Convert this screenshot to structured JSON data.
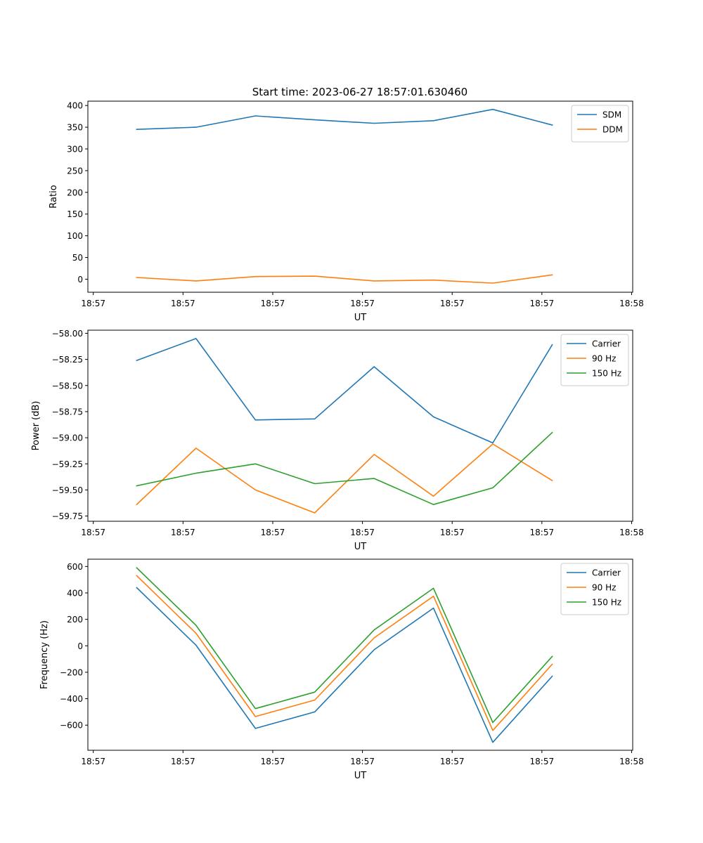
{
  "figure": {
    "title": "Start time: 2023-06-27 18:57:01.630460"
  },
  "chart_data": [
    {
      "type": "line",
      "xlabel": "UT",
      "ylabel": "Ratio",
      "x_tick_labels": [
        "18:57",
        "18:57",
        "18:57",
        "18:57",
        "18:57",
        "18:57",
        "18:58"
      ],
      "x_positions": [
        0.0,
        0.655,
        1.31,
        1.965,
        2.62,
        3.275,
        3.93,
        4.585,
        5.24,
        5.895,
        6.55,
        7.205,
        7.86
      ],
      "x_ticks": [
        0,
        1.655,
        3.31,
        4.965,
        6.62,
        8.275,
        9.93
      ],
      "xlim": [
        -0.1,
        9.95
      ],
      "ylim": [
        -30,
        410
      ],
      "y_ticks": [
        0,
        50,
        100,
        150,
        200,
        250,
        300,
        350,
        400
      ],
      "legend_position": "top-right",
      "grid": false,
      "x": [
        0.8,
        1.895,
        2.99,
        4.085,
        5.18,
        6.275,
        7.37,
        8.465
      ],
      "series": [
        {
          "name": "SDM",
          "color": "#1f77b4",
          "values": [
            345,
            350,
            376,
            367,
            359,
            365,
            391,
            355
          ]
        },
        {
          "name": "DDM",
          "color": "#ff7f0e",
          "values": [
            4,
            -4,
            6,
            7,
            -4,
            -2,
            -9,
            10
          ]
        }
      ]
    },
    {
      "type": "line",
      "xlabel": "UT",
      "ylabel": "Power (dB)",
      "x_tick_labels": [
        "18:57",
        "18:57",
        "18:57",
        "18:57",
        "18:57",
        "18:57",
        "18:58"
      ],
      "x_ticks": [
        0,
        1.655,
        3.31,
        4.965,
        6.62,
        8.275,
        9.93
      ],
      "xlim": [
        -0.1,
        9.95
      ],
      "ylim": [
        -59.8,
        -57.97
      ],
      "y_ticks": [
        -59.75,
        -59.5,
        -59.25,
        -59.0,
        -58.75,
        -58.5,
        -58.25,
        -58.0
      ],
      "y_tick_labels": [
        "−59.75",
        "−59.50",
        "−59.25",
        "−59.00",
        "−58.75",
        "−58.50",
        "−58.25",
        "−58.00"
      ],
      "legend_position": "top-right",
      "grid": false,
      "x": [
        0.8,
        1.895,
        2.99,
        4.085,
        5.18,
        6.275,
        7.37,
        8.465
      ],
      "series": [
        {
          "name": "Carrier",
          "color": "#1f77b4",
          "values": [
            -58.26,
            -58.05,
            -58.83,
            -58.82,
            -58.32,
            -58.8,
            -59.05,
            -58.11
          ]
        },
        {
          "name": "90 Hz",
          "color": "#ff7f0e",
          "values": [
            -59.64,
            -59.1,
            -59.5,
            -59.72,
            -59.16,
            -59.56,
            -59.06,
            -59.41
          ]
        },
        {
          "name": "150 Hz",
          "color": "#2ca02c",
          "values": [
            -59.46,
            -59.34,
            -59.25,
            -59.44,
            -59.39,
            -59.64,
            -59.48,
            -58.95
          ]
        }
      ]
    },
    {
      "type": "line",
      "xlabel": "UT",
      "ylabel": "Frequency (Hz)",
      "x_tick_labels": [
        "18:57",
        "18:57",
        "18:57",
        "18:57",
        "18:57",
        "18:57",
        "18:58"
      ],
      "x_ticks": [
        0,
        1.655,
        3.31,
        4.965,
        6.62,
        8.275,
        9.93
      ],
      "xlim": [
        -0.1,
        9.95
      ],
      "ylim": [
        -790,
        655
      ],
      "y_ticks": [
        -600,
        -400,
        -200,
        0,
        200,
        400,
        600
      ],
      "y_tick_labels": [
        "−600",
        "−400",
        "−200",
        "0",
        "200",
        "400",
        "600"
      ],
      "legend_position": "top-right",
      "grid": false,
      "x": [
        0.8,
        1.895,
        2.99,
        4.085,
        5.18,
        6.275,
        7.37,
        8.465
      ],
      "series": [
        {
          "name": "Carrier",
          "color": "#1f77b4",
          "values": [
            440,
            5,
            -625,
            -500,
            -30,
            285,
            -730,
            -230
          ]
        },
        {
          "name": "90 Hz",
          "color": "#ff7f0e",
          "values": [
            530,
            95,
            -535,
            -410,
            60,
            375,
            -640,
            -140
          ]
        },
        {
          "name": "150 Hz",
          "color": "#2ca02c",
          "values": [
            590,
            155,
            -475,
            -350,
            120,
            435,
            -580,
            -80
          ]
        }
      ]
    }
  ]
}
